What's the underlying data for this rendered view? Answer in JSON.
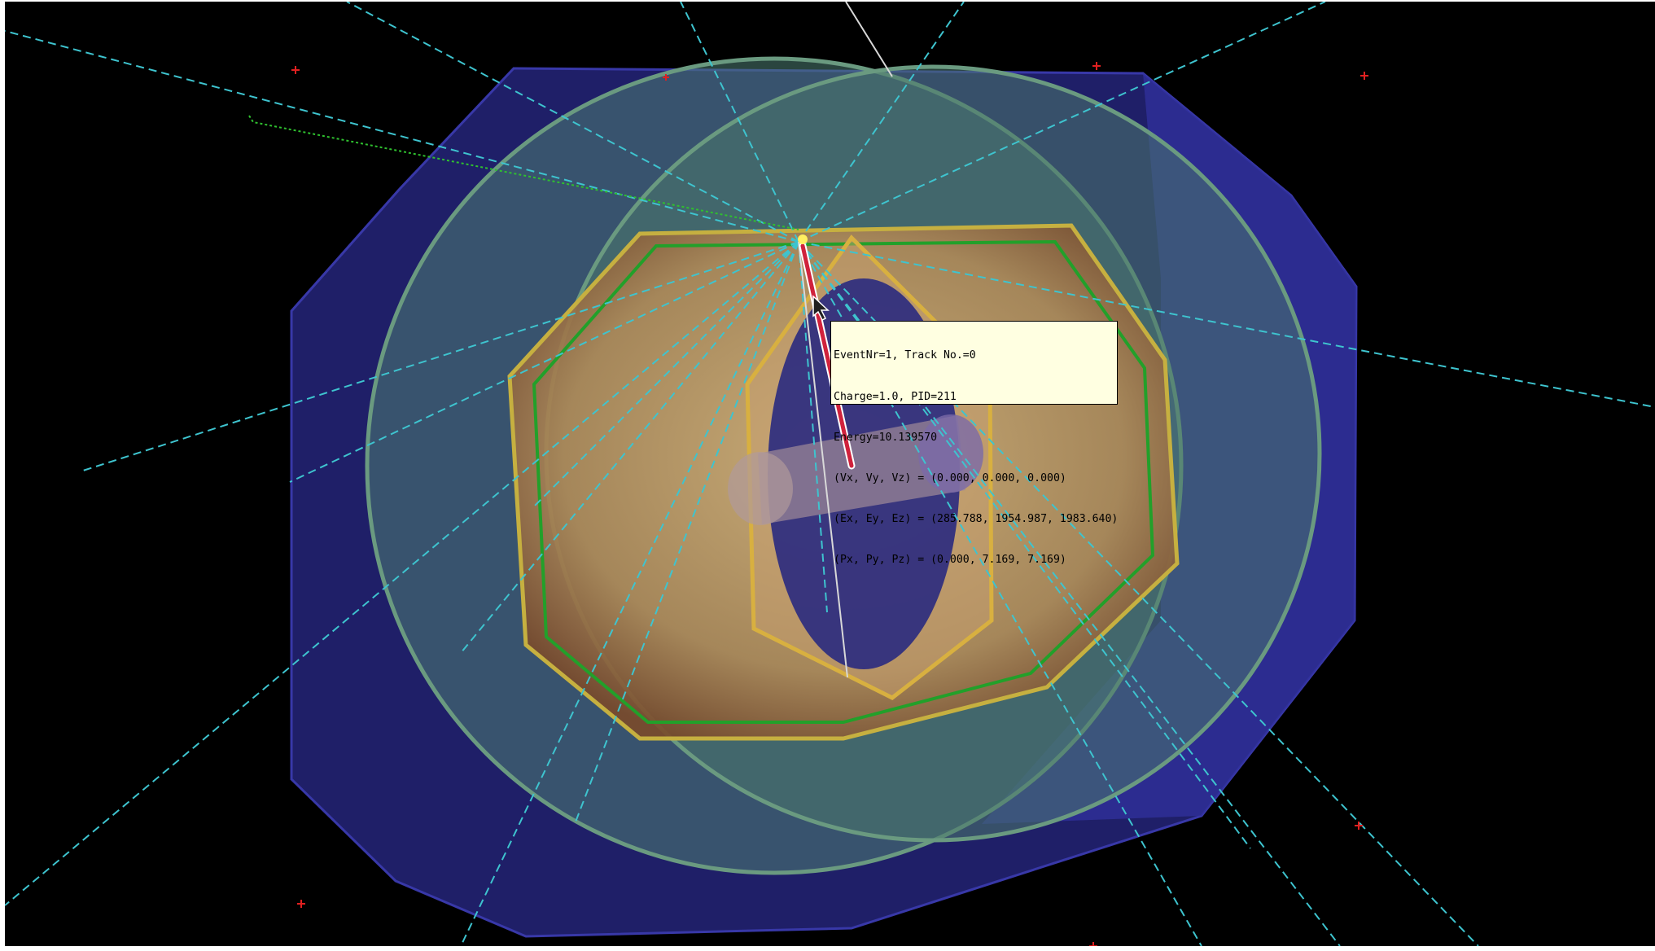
{
  "colors": {
    "background": "#000000",
    "frame_border": "#ffffff",
    "outer_octagon": "#2a2a8a",
    "green_sphere": "#5f8a7a",
    "detector_gold": "#c8a468",
    "track_highlight": "#d0223c",
    "particle_trajectory": "#3ec4cf",
    "marker": "#e02020",
    "tooltip_bg": "#ffffe1"
  },
  "icons": {
    "cursor": "mouse-pointer-icon",
    "marker": "red-cross-marker"
  },
  "tooltip": {
    "lines": [
      "EventNr=1, Track No.=0",
      "Charge=1.0, PID=211",
      "Energy=10.139570",
      "(Vx, Vy, Vz) = (0.000, 0.000, 0.000)",
      "(Ex, Ey, Ez) = (285.788, 1954.987, 1983.640)",
      "(Px, Py, Pz) = (0.000, 7.169, 7.169)"
    ]
  }
}
